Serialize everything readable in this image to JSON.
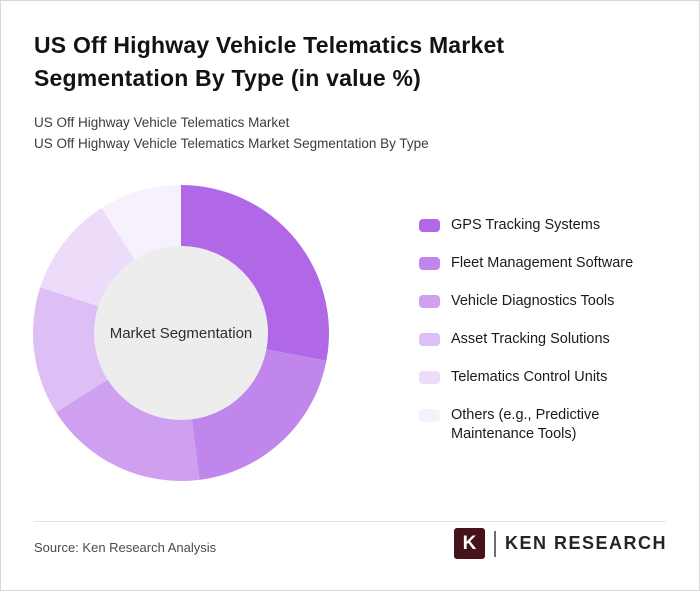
{
  "header": {
    "title": "US Off Highway Vehicle Telematics Market Segmentation By Type (in value %)",
    "subtitle1": "US Off Highway Vehicle Telematics Market",
    "subtitle2": "US Off Highway Vehicle Telematics Market Segmentation By Type"
  },
  "chart_data": {
    "type": "pie",
    "donut": true,
    "center_label": "Market Segmentation",
    "hole_color": "#ededed",
    "legend_position": "right",
    "unit": "value %",
    "categories": [
      "GPS Tracking Systems",
      "Fleet Management Software",
      "Vehicle Diagnostics Tools",
      "Asset Tracking Solutions",
      "Telematics Control Units",
      "Others (e.g., Predictive Maintenance Tools)"
    ],
    "values": [
      28,
      20,
      18,
      14,
      11,
      9
    ],
    "colors": [
      "#b168e6",
      "#c086ec",
      "#cf9ff0",
      "#debff5",
      "#ecdcfa",
      "#f7f0fd"
    ]
  },
  "legend": {
    "items": [
      {
        "label": "GPS Tracking Systems",
        "color": "#b168e6"
      },
      {
        "label": "Fleet Management Software",
        "color": "#c086ec"
      },
      {
        "label": "Vehicle Diagnostics Tools",
        "color": "#cf9ff0"
      },
      {
        "label": "Asset Tracking Solutions",
        "color": "#debff5"
      },
      {
        "label": "Telematics Control Units",
        "color": "#ecdcfa"
      },
      {
        "label": "Others (e.g., Predictive Maintenance Tools)",
        "color": "#f7f0fd"
      }
    ]
  },
  "footer": {
    "source": "Source: Ken Research Analysis",
    "logo_k": "K",
    "logo_text": "KEN RESEARCH"
  }
}
